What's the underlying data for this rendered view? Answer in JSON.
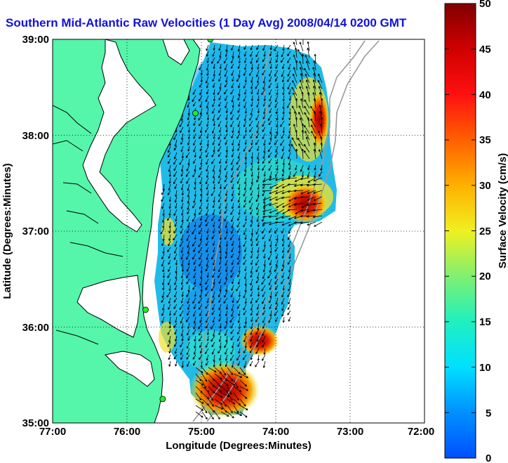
{
  "title": "Southern Mid-Atlantic Raw Velocities (1 Day Avg) 2008/04/14 0200 GMT",
  "x_axis": {
    "label": "Longitude (Degrees:Minutes)",
    "ticks": [
      "77:00",
      "76:00",
      "75:00",
      "74:00",
      "73:00",
      "72:00"
    ]
  },
  "y_axis": {
    "label": "Latitude (Degrees:Minutes)",
    "ticks": [
      "39:00",
      "38:00",
      "37:00",
      "36:00",
      "35:00"
    ]
  },
  "colorbar": {
    "label": "Surface Velocity (cm/s)",
    "ticks": [
      "50",
      "45",
      "40",
      "35",
      "30",
      "25",
      "20",
      "15",
      "10",
      "5",
      "0"
    ]
  },
  "colors": {
    "land": "#55f5aa",
    "title": "#1010e0",
    "station": "#22ee22"
  },
  "stations": [
    {
      "lon": -74.88,
      "lat": 39.0
    },
    {
      "lon": -75.08,
      "lat": 38.23
    },
    {
      "lon": -75.75,
      "lat": 36.18
    },
    {
      "lon": -75.52,
      "lat": 35.25
    }
  ]
}
